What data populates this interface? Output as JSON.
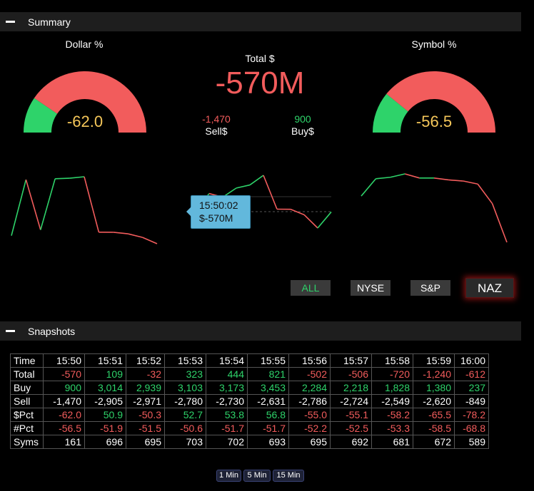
{
  "summary": {
    "header": "Summary",
    "dollar_label": "Dollar %",
    "dollar_value": "-62.0",
    "dollar_pct": -62.0,
    "symbol_label": "Symbol %",
    "symbol_value": "-56.5",
    "symbol_pct": -56.5,
    "total_label": "Total $",
    "total_value": "-570M",
    "sell_value": "-1,470",
    "sell_label": "Sell$",
    "buy_value": "900",
    "buy_label": "Buy$"
  },
  "tooltip": {
    "time": "15:50:02",
    "value": "$-570M"
  },
  "exchange_buttons": [
    "ALL",
    "NYSE",
    "S&P",
    "NAZ"
  ],
  "snapshots": {
    "header": "Snapshots",
    "times": [
      "15:50",
      "15:51",
      "15:52",
      "15:53",
      "15:54",
      "15:55",
      "15:56",
      "15:57",
      "15:58",
      "15:59",
      "16:00"
    ],
    "rows": [
      {
        "label": "Total",
        "values": [
          "-570",
          "109",
          "-32",
          "323",
          "444",
          "821",
          "-502",
          "-506",
          "-720",
          "-1,240",
          "-612"
        ]
      },
      {
        "label": "Buy",
        "values": [
          "900",
          "3,014",
          "2,939",
          "3,103",
          "3,173",
          "3,453",
          "2,284",
          "2,218",
          "1,828",
          "1,380",
          "237"
        ]
      },
      {
        "label": "Sell",
        "values": [
          "-1,470",
          "-2,905",
          "-2,971",
          "-2,780",
          "-2,730",
          "-2,631",
          "-2,786",
          "-2,724",
          "-2,549",
          "-2,620",
          "-849"
        ]
      },
      {
        "label": "$Pct",
        "values": [
          "-62.0",
          "50.9",
          "-50.3",
          "52.7",
          "53.8",
          "56.8",
          "-55.0",
          "-55.1",
          "-58.2",
          "-65.5",
          "-78.2"
        ]
      },
      {
        "label": "#Pct",
        "values": [
          "-56.5",
          "-51.9",
          "-51.5",
          "-50.6",
          "-51.7",
          "-51.7",
          "-52.2",
          "-52.5",
          "-53.3",
          "-58.5",
          "-68.8"
        ]
      },
      {
        "label": "Syms",
        "values": [
          "161",
          "696",
          "695",
          "703",
          "702",
          "693",
          "695",
          "692",
          "681",
          "672",
          "589"
        ]
      }
    ],
    "header_label": "Time"
  },
  "interval_buttons": [
    "1 Min",
    "5 Min",
    "15 Min"
  ],
  "colors": {
    "positive": "#2ed36a",
    "negative": "#f25c5c",
    "gauge_value": "#f5c75a",
    "tooltip": "#62b8dc"
  },
  "sparklines": {
    "dollar": [
      -62.0,
      50.9,
      -50.3,
      52.7,
      53.8,
      56.8,
      -55.0,
      -55.1,
      -58.2,
      -65.5,
      -78.2
    ],
    "total": [
      -570,
      109,
      -32,
      323,
      444,
      821,
      -502,
      -506,
      -720,
      -1240,
      -612
    ],
    "symbol": [
      -56.5,
      -51.9,
      -51.5,
      -50.6,
      -51.7,
      -51.7,
      -52.2,
      -52.5,
      -53.3,
      -58.5,
      -68.8
    ]
  }
}
